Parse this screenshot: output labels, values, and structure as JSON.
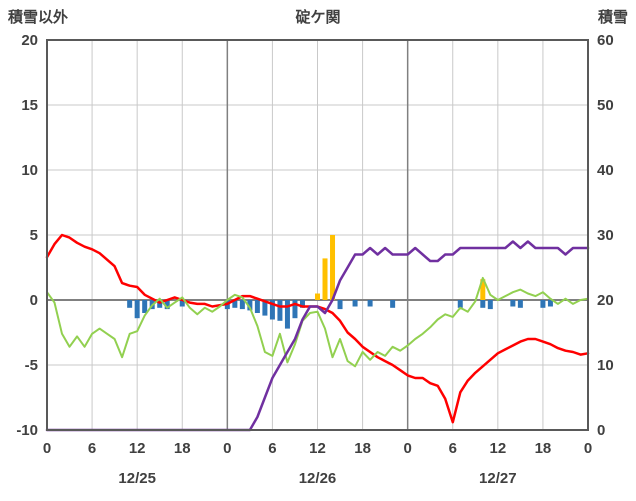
{
  "header": {
    "left_axis_title": "積雪以外",
    "chart_title": "碇ケ関",
    "right_axis_title": "積雪"
  },
  "colors": {
    "grid": "#C9C9C9",
    "axis_zero": "#808080",
    "day_boundary": "#808080",
    "frame": "#595959",
    "text": "#404040",
    "red_line": "#FF0000",
    "green_line": "#92D050",
    "purple_line": "#7030A0",
    "blue_bar": "#2E75B6",
    "orange_bar": "#FFC000"
  },
  "chart_data": {
    "type": "line+bar combo (hourly, 3 days)",
    "title": "碇ケ関",
    "grid": true,
    "legend": "none",
    "left_axis": {
      "title": "積雪以外",
      "min": -10,
      "max": 20,
      "ticks": [
        20,
        15,
        10,
        5,
        0,
        -5,
        -10
      ]
    },
    "right_axis": {
      "title": "積雪",
      "min": 0,
      "max": 60,
      "ticks": [
        60,
        50,
        40,
        30,
        20,
        10,
        0
      ]
    },
    "x_axis": {
      "hours_span": 72,
      "tick_interval_hours": 6,
      "tick_labels": [
        "0",
        "6",
        "12",
        "18",
        "0",
        "6",
        "12",
        "18",
        "0",
        "6",
        "12",
        "18",
        "0"
      ],
      "date_labels": [
        "12/25",
        "12/26",
        "12/27"
      ],
      "date_label_center_hours": [
        12,
        36,
        60
      ],
      "day_boundary_hours": [
        24,
        48
      ]
    },
    "series": [
      {
        "name": "red-line",
        "type": "line",
        "axis": "left",
        "color": "#FF0000",
        "width": 2.5,
        "values": [
          3.3,
          4.3,
          5.0,
          4.8,
          4.4,
          4.1,
          3.9,
          3.6,
          3.1,
          2.6,
          1.3,
          1.1,
          1.0,
          0.4,
          0.1,
          -0.2,
          0.0,
          0.2,
          0.0,
          -0.2,
          -0.3,
          -0.3,
          -0.5,
          -0.4,
          -0.3,
          0.0,
          0.3,
          0.3,
          0.1,
          -0.1,
          -0.3,
          -0.5,
          -0.5,
          -0.3,
          -0.5,
          -0.5,
          -0.5,
          -0.7,
          -1.0,
          -1.6,
          -2.5,
          -3.0,
          -3.6,
          -4.0,
          -4.4,
          -4.7,
          -5.0,
          -5.4,
          -5.8,
          -6.0,
          -6.0,
          -6.4,
          -6.6,
          -7.6,
          -9.4,
          -7.1,
          -6.2,
          -5.6,
          -5.1,
          -4.6,
          -4.1,
          -3.8,
          -3.5,
          -3.2,
          -3.0,
          -3.0,
          -3.2,
          -3.4,
          -3.7,
          -3.9,
          -4.0,
          -4.2,
          -4.1
        ]
      },
      {
        "name": "green-line",
        "type": "line",
        "axis": "left",
        "color": "#92D050",
        "width": 2,
        "values": [
          0.6,
          -0.2,
          -2.6,
          -3.6,
          -2.8,
          -3.6,
          -2.6,
          -2.2,
          -2.6,
          -3.0,
          -4.4,
          -2.6,
          -2.4,
          -1.2,
          -0.4,
          0.1,
          -0.6,
          -0.2,
          0.2,
          -0.6,
          -1.1,
          -0.6,
          -0.9,
          -0.5,
          0.0,
          0.4,
          0.2,
          -0.6,
          -2.0,
          -4.0,
          -4.3,
          -2.6,
          -4.8,
          -3.4,
          -1.6,
          -1.0,
          -0.9,
          -2.2,
          -4.4,
          -3.0,
          -4.7,
          -5.1,
          -4.0,
          -4.6,
          -4.0,
          -4.3,
          -3.6,
          -3.9,
          -3.5,
          -3.0,
          -2.6,
          -2.1,
          -1.5,
          -1.1,
          -1.3,
          -0.6,
          -0.9,
          -0.1,
          1.7,
          0.4,
          0.0,
          0.3,
          0.6,
          0.8,
          0.5,
          0.3,
          0.6,
          0.1,
          -0.3,
          0.1,
          -0.3,
          0.0,
          0.1
        ]
      },
      {
        "name": "purple-snow-depth-line",
        "type": "line",
        "axis": "right",
        "color": "#7030A0",
        "width": 2.5,
        "values": [
          0,
          0,
          0,
          0,
          0,
          0,
          0,
          0,
          0,
          0,
          0,
          0,
          0,
          0,
          0,
          0,
          0,
          0,
          0,
          0,
          0,
          0,
          0,
          0,
          0,
          0,
          0,
          0,
          2,
          5,
          8,
          10,
          12,
          14,
          17,
          19,
          19,
          18,
          20,
          23,
          25,
          27,
          27,
          28,
          27,
          28,
          27,
          27,
          27,
          28,
          27,
          26,
          26,
          27,
          27,
          28,
          28,
          28,
          28,
          28,
          28,
          28,
          29,
          28,
          29,
          28,
          28,
          28,
          28,
          27,
          28,
          28,
          28
        ]
      },
      {
        "name": "blue-bars",
        "type": "bar",
        "axis": "left",
        "color": "#2E75B6",
        "points": [
          [
            11,
            -0.6
          ],
          [
            12,
            -1.4
          ],
          [
            13,
            -1.0
          ],
          [
            14,
            -0.7
          ],
          [
            15,
            -0.6
          ],
          [
            16,
            -0.7
          ],
          [
            18,
            -0.5
          ],
          [
            24,
            -0.7
          ],
          [
            25,
            -0.6
          ],
          [
            26,
            -0.7
          ],
          [
            27,
            -0.8
          ],
          [
            28,
            -1.0
          ],
          [
            29,
            -1.2
          ],
          [
            30,
            -1.5
          ],
          [
            31,
            -1.6
          ],
          [
            32,
            -2.2
          ],
          [
            33,
            -1.4
          ],
          [
            34,
            -0.6
          ],
          [
            39,
            -0.7
          ],
          [
            41,
            -0.5
          ],
          [
            43,
            -0.5
          ],
          [
            46,
            -0.6
          ],
          [
            55,
            -0.6
          ],
          [
            58,
            -0.6
          ],
          [
            59,
            -0.7
          ],
          [
            62,
            -0.5
          ],
          [
            63,
            -0.6
          ],
          [
            66,
            -0.6
          ],
          [
            67,
            -0.5
          ]
        ]
      },
      {
        "name": "orange-bars",
        "type": "bar",
        "axis": "left",
        "color": "#FFC000",
        "points": [
          [
            36,
            0.5
          ],
          [
            37,
            3.2
          ],
          [
            38,
            5.0
          ],
          [
            58,
            1.6
          ]
        ]
      }
    ]
  }
}
